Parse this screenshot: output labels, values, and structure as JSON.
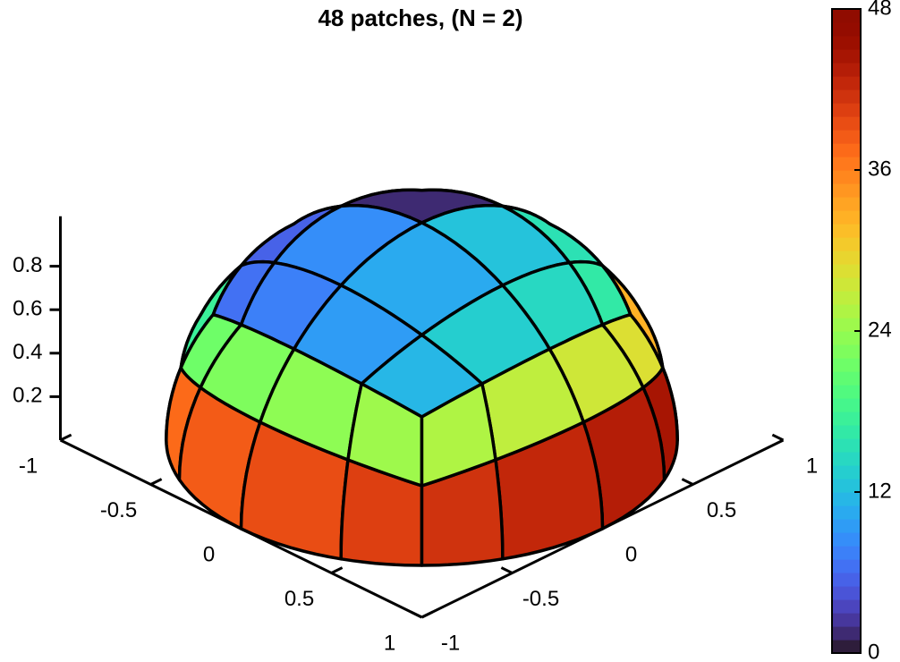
{
  "chart_data": {
    "type": "surface",
    "title": "48 patches, (N = 2)",
    "colormap": "turbo",
    "patches": {
      "top": [
        6,
        5,
        3,
        4,
        7,
        8,
        1,
        16,
        9,
        10,
        12,
        15,
        11,
        13,
        14,
        16
      ],
      "middle": [
        17,
        18,
        19,
        20,
        21,
        22,
        23,
        24,
        25,
        26,
        27,
        28,
        29,
        30,
        31,
        32
      ],
      "bottom": [
        33,
        34,
        35,
        36,
        37,
        38,
        39,
        40,
        41,
        42,
        43,
        44,
        45,
        46,
        47,
        48
      ]
    },
    "xlim": [
      -1,
      1
    ],
    "xticks": [
      -1,
      -0.5,
      0,
      0.5,
      1
    ],
    "ylim": [
      -1,
      1
    ],
    "yticks": [
      -1,
      -0.5,
      0,
      0.5,
      1
    ],
    "zlim": [
      0,
      1
    ],
    "zticks": [
      0.2,
      0.4,
      0.6,
      0.8
    ],
    "clim": [
      0,
      48
    ],
    "colorbar_ticks": [
      0,
      12,
      24,
      36,
      48
    ]
  }
}
